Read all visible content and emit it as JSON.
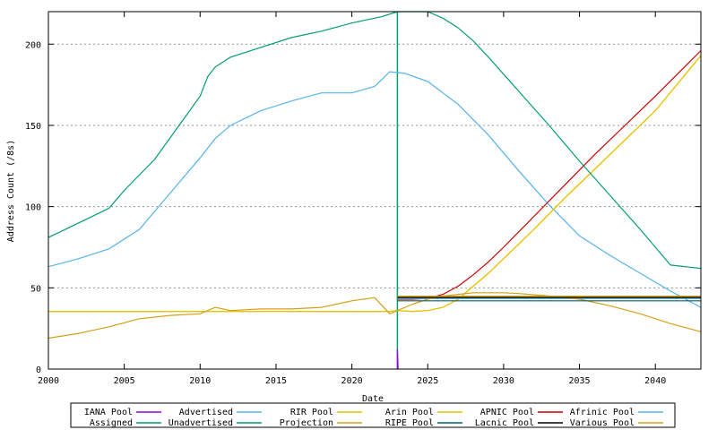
{
  "chart_data": {
    "type": "line",
    "xlabel": "Date",
    "ylabel": "Address Count (/8s)",
    "xlim": [
      2000,
      2043
    ],
    "ylim": [
      0,
      220
    ],
    "xticks": [
      "2000",
      "2005",
      "2010",
      "2015",
      "2020",
      "2025",
      "2030",
      "2035",
      "2040"
    ],
    "yticks": [
      "0",
      "50",
      "100",
      "150",
      "200"
    ],
    "grid": "horizontal-dashed",
    "legend_position": "bottom",
    "vertical_marker_x": 2023.0,
    "series": [
      {
        "name": "IANA Pool",
        "color": "#9400d3",
        "x": [
          2023.0,
          2023.0,
          2023.05
        ],
        "y": [
          0,
          12,
          0
        ]
      },
      {
        "name": "Advertised",
        "color": "#56b4e9",
        "x": [
          2000,
          2002,
          2004,
          2006,
          2008,
          2010,
          2011,
          2012,
          2014,
          2016,
          2018,
          2020,
          2021.5,
          2022.5,
          2023.5,
          2025,
          2027,
          2029,
          2031,
          2033,
          2035,
          2037,
          2039,
          2041,
          2043
        ],
        "y": [
          63,
          68,
          74,
          86,
          108,
          130,
          142,
          150,
          159,
          165,
          170,
          170,
          174,
          183,
          182,
          177,
          163,
          144,
          122,
          101,
          82,
          70,
          59,
          48,
          38
        ]
      },
      {
        "name": "RIR Pool",
        "color": "#e6c300",
        "x": [
          2000,
          2022.5,
          2023.0,
          2024,
          2025,
          2026,
          2027,
          2028,
          2029,
          2030,
          2032,
          2034,
          2036,
          2038,
          2040,
          2043
        ],
        "y": [
          35.5,
          35.5,
          36,
          35.5,
          36,
          38,
          43,
          51,
          59,
          68,
          86,
          105,
          123,
          141,
          159,
          193
        ]
      },
      {
        "name": "Arin Pool",
        "color": "#e6c300",
        "x": [
          2000,
          2022.5,
          2023.0,
          2024,
          2025,
          2026,
          2027,
          2028,
          2029,
          2030,
          2032,
          2034,
          2036,
          2038,
          2040,
          2043
        ],
        "y": [
          35.5,
          35.5,
          36,
          35.5,
          36,
          38,
          43,
          51,
          59,
          68,
          86,
          105,
          123,
          141,
          159,
          193
        ]
      },
      {
        "name": "APNIC Pool",
        "color": "#cc0000",
        "x": [
          2023.0,
          2024,
          2025,
          2026,
          2027,
          2028,
          2029,
          2030,
          2032,
          2034,
          2036,
          2038,
          2040,
          2043
        ],
        "y": [
          43,
          43,
          43.5,
          46,
          51,
          58,
          66,
          75,
          94,
          113,
          132,
          150,
          168,
          196
        ]
      },
      {
        "name": "Afrinic Pool",
        "color": "#56b4e9",
        "x": [
          2023.0,
          2043
        ],
        "y": [
          43.5,
          43.5
        ]
      },
      {
        "name": "Assigned",
        "color": "#009e73",
        "x": [
          2000,
          2002,
          2004,
          2005,
          2007,
          2009,
          2010,
          2010.5,
          2011,
          2012,
          2014,
          2016,
          2018,
          2020,
          2022,
          2023.0
        ],
        "y": [
          81,
          90,
          99,
          110,
          129,
          155,
          168,
          180,
          186,
          192,
          198,
          204,
          208,
          213,
          217,
          220
        ]
      },
      {
        "name": "Unadvertised",
        "color": "#009e73",
        "x": [
          2023.0,
          2025,
          2026,
          2027,
          2028,
          2029,
          2031,
          2033,
          2035,
          2037,
          2039,
          2041,
          2043
        ],
        "y": [
          220,
          220,
          216,
          210,
          202,
          192,
          171,
          150,
          128,
          107,
          86,
          64,
          62
        ]
      },
      {
        "name": "Projection",
        "color": "#d4a017",
        "x": [
          2000,
          2002,
          2004,
          2006,
          2008,
          2010,
          2011,
          2012,
          2014,
          2016,
          2018,
          2020,
          2021.5,
          2022.5,
          2023.0,
          2024,
          2025,
          2026,
          2027,
          2028,
          2029,
          2030,
          2031,
          2033,
          2035,
          2037,
          2039,
          2041,
          2043
        ],
        "y": [
          19,
          22,
          26,
          31,
          33,
          34,
          38,
          36,
          37,
          37,
          38,
          42,
          44,
          34,
          36,
          40,
          43,
          45,
          46,
          47,
          47,
          47,
          46.5,
          45,
          43,
          39,
          34,
          28,
          23
        ]
      },
      {
        "name": "RIPE Pool",
        "color": "#005f73",
        "x": [
          2023.0,
          2043
        ],
        "y": [
          42,
          42
        ]
      },
      {
        "name": "Lacnic Pool",
        "color": "#000000",
        "x": [
          2023.0,
          2043
        ],
        "y": [
          44.3,
          44.3
        ]
      },
      {
        "name": "Various Pool",
        "color": "#d4a017",
        "x": [
          2023.0,
          2043
        ],
        "y": [
          44.8,
          44.8
        ]
      }
    ],
    "legend": [
      [
        "IANA Pool",
        "Advertised",
        "RIR Pool",
        "Arin Pool",
        "APNIC Pool",
        "Afrinic Pool"
      ],
      [
        "Assigned",
        "Unadvertised",
        "Projection",
        "RIPE Pool",
        "Lacnic Pool",
        "Various Pool"
      ]
    ]
  }
}
